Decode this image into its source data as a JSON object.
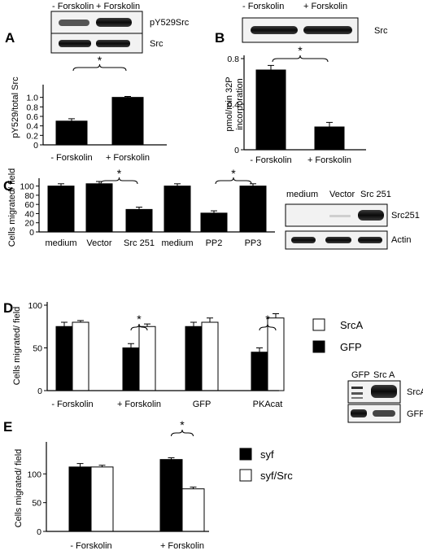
{
  "figure": {
    "panels": [
      "A",
      "B",
      "C",
      "D",
      "E"
    ],
    "significance_marker": "*"
  },
  "chart_data": [
    {
      "id": "A",
      "type": "bar",
      "categories": [
        "- Forskolin",
        "+ Forskolin"
      ],
      "values": [
        0.5,
        1.0
      ],
      "errors": [
        0.05,
        0.02
      ],
      "ylabel": "pY529/total Src",
      "ylim": [
        0,
        1.2
      ],
      "yticks": [
        0,
        0.2,
        0.4,
        0.6,
        0.8,
        1.0
      ],
      "ytick_labels": [
        "0",
        "0.2",
        "0.4",
        "0.6",
        "0.8",
        "1.0"
      ],
      "significance": [
        [
          0,
          1
        ]
      ],
      "blot": {
        "lane_labels": [
          "- Forskolin",
          "+ Forskolin"
        ],
        "rows": [
          "pY529Src",
          "Src"
        ]
      }
    },
    {
      "id": "B",
      "type": "bar",
      "categories": [
        "- Forskolin",
        "+ Forskolin"
      ],
      "values": [
        0.7,
        0.2
      ],
      "errors": [
        0.04,
        0.04
      ],
      "ylabel": "pmol/min 32P incorporation",
      "ylabel_lines": [
        "pmol/min 32P",
        "incorporation"
      ],
      "ylim": [
        0,
        0.8
      ],
      "yticks": [
        0,
        0.4,
        0.8
      ],
      "ytick_labels": [
        "0",
        "0.4",
        "0.8"
      ],
      "significance": [
        [
          0,
          1
        ]
      ],
      "blot": {
        "lane_labels": [
          "- Forskolin",
          "+ Forskolin"
        ],
        "rows": [
          "Src"
        ]
      }
    },
    {
      "id": "C",
      "type": "bar",
      "categories": [
        "medium",
        "Vector",
        "Src 251",
        "medium",
        "PP2",
        "PP3"
      ],
      "values": [
        100,
        105,
        49,
        100,
        41,
        100
      ],
      "errors": [
        5,
        5,
        5,
        5,
        5,
        5
      ],
      "ylabel": "Cells migrated/ field",
      "ylim": [
        0,
        110
      ],
      "yticks": [
        0,
        20,
        40,
        60,
        80,
        100
      ],
      "ytick_labels": [
        "0",
        "20",
        "40",
        "60",
        "80",
        "100"
      ],
      "significance": [
        [
          1,
          2
        ],
        [
          4,
          5
        ]
      ],
      "blot": {
        "lane_labels": [
          "medium",
          "Vector",
          "Src 251"
        ],
        "rows": [
          "Src251",
          "Actin"
        ]
      }
    },
    {
      "id": "D",
      "type": "bar",
      "categories": [
        "- Forskolin",
        "+ Forskolin",
        "GFP",
        "PKAcat"
      ],
      "series": [
        {
          "name": "GFP",
          "color": "#000000",
          "values": [
            75,
            50,
            75,
            45
          ],
          "errors": [
            5,
            5,
            5,
            5
          ]
        },
        {
          "name": "SrcA",
          "color": "#ffffff",
          "values": [
            80,
            75,
            80,
            85
          ],
          "errors": [
            2,
            3,
            5,
            5
          ]
        }
      ],
      "legend_order": [
        "SrcA",
        "GFP"
      ],
      "ylabel": "Cells migrated/ field",
      "ylim": [
        0,
        100
      ],
      "yticks": [
        0,
        50,
        100
      ],
      "ytick_labels": [
        "0",
        "50",
        "100"
      ],
      "significance": [
        1,
        3
      ],
      "blot": {
        "lane_labels": [
          "GFP",
          "Src A"
        ],
        "rows": [
          "SrcA",
          "GFP"
        ]
      }
    },
    {
      "id": "E",
      "type": "bar",
      "categories": [
        "- Forskolin",
        "+ Forskolin"
      ],
      "series": [
        {
          "name": "syf",
          "color": "#000000",
          "values": [
            112,
            125
          ],
          "errors": [
            6,
            3
          ]
        },
        {
          "name": "syf/Src",
          "color": "#ffffff",
          "values": [
            112,
            74
          ],
          "errors": [
            3,
            3
          ]
        }
      ],
      "ylabel": "Cells migrated/ field",
      "ylim": [
        0,
        150
      ],
      "yticks": [
        0,
        50,
        100
      ],
      "ytick_labels": [
        "0",
        "50",
        "100"
      ],
      "significance": [
        1
      ]
    }
  ]
}
